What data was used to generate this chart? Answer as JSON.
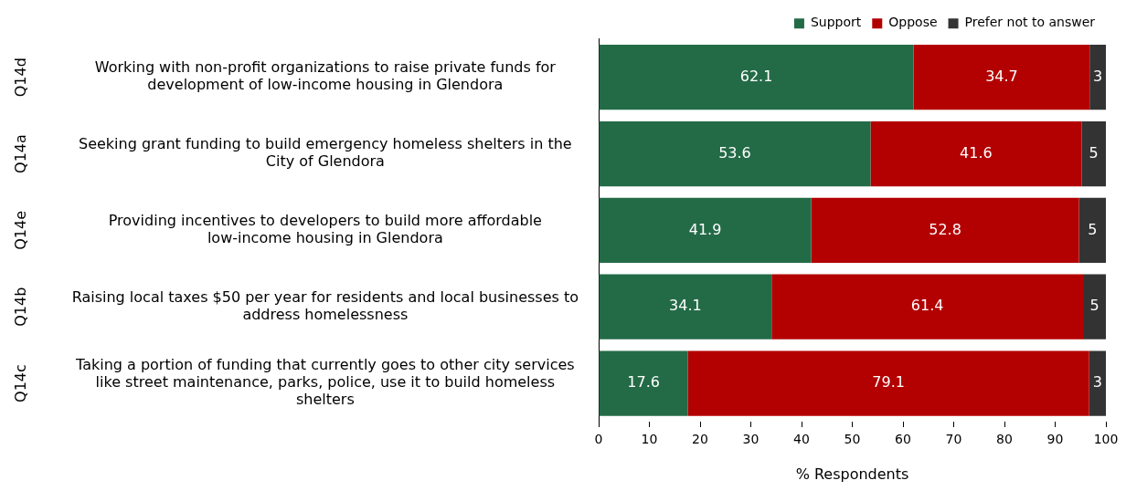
{
  "chart_data": {
    "type": "bar",
    "orientation": "horizontal",
    "stacked": true,
    "xlabel": "% Respondents",
    "categories": [
      "Working with non-profit organizations to raise private funds for development of low-income housing in Glendora",
      "Seeking grant funding to build emergency homeless shelters in the City of Glendora",
      "Providing incentives to developers to build more affordable low-income housing in Glendora",
      "Raising local taxes $50 per year for residents and local businesses to address homelessness",
      "Taking a portion of funding that currently goes to other city services like street maintenance, parks, police, use it to build homeless shelters"
    ],
    "annotations": [
      "Q14d",
      "Q14a",
      "Q14e",
      "Q14b",
      "Q14c"
    ],
    "series": [
      {
        "name": "Support",
        "color": "#236b47",
        "values": [
          62.1,
          53.6,
          41.9,
          34.1,
          17.6
        ],
        "value_labels": [
          "62.1",
          "53.6",
          "41.9",
          "34.1",
          "17.6"
        ]
      },
      {
        "name": "Oppose",
        "color": "#b30000",
        "values": [
          34.7,
          41.6,
          52.8,
          61.4,
          79.1
        ],
        "value_labels": [
          "34.7",
          "41.6",
          "52.8",
          "61.4",
          "79.1"
        ]
      },
      {
        "name": "Prefer not to answer",
        "color": "#333333",
        "values": [
          3.2,
          4.8,
          5.3,
          4.5,
          3.3
        ],
        "value_labels": [
          "3",
          "5",
          "5",
          "5",
          "3"
        ]
      }
    ],
    "xlim": [
      0,
      100
    ],
    "xticks": [
      0,
      10,
      20,
      30,
      40,
      50,
      60,
      70,
      80,
      90,
      100
    ],
    "legend": "top",
    "grid": false
  }
}
